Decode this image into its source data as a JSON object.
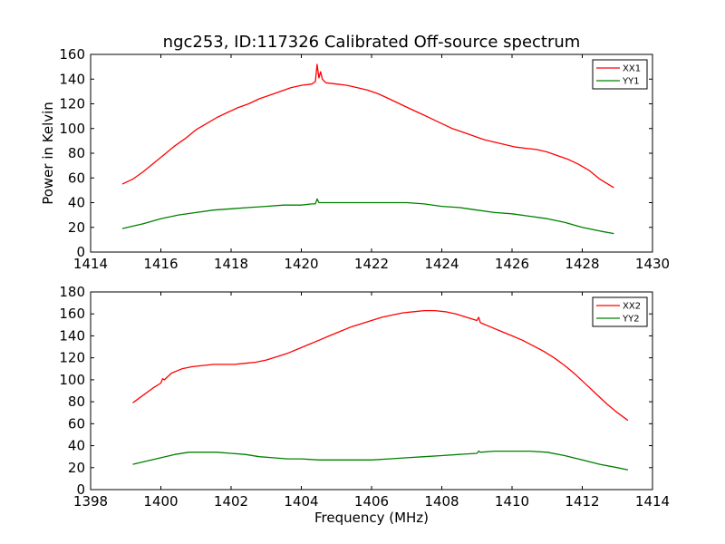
{
  "figure": {
    "title": "ngc253, ID:117326 Calibrated Off-source spectrum"
  },
  "chart_data": [
    {
      "type": "line",
      "title": "ngc253, ID:117326 Calibrated Off-source spectrum",
      "xlabel": "",
      "ylabel": "Power in Kelvin",
      "xlim": [
        1414,
        1430
      ],
      "ylim": [
        0,
        160
      ],
      "xticks": [
        1414,
        1416,
        1418,
        1420,
        1422,
        1424,
        1426,
        1428,
        1430
      ],
      "yticks": [
        0,
        20,
        40,
        60,
        80,
        100,
        120,
        140,
        160
      ],
      "grid": false,
      "legend": "top-right",
      "series": [
        {
          "name": "XX1",
          "color": "#ff0000",
          "x": [
            1414.9,
            1415.2,
            1415.5,
            1415.8,
            1416.1,
            1416.4,
            1416.7,
            1417.0,
            1417.3,
            1417.6,
            1417.9,
            1418.2,
            1418.5,
            1418.8,
            1419.1,
            1419.4,
            1419.7,
            1420.0,
            1420.3,
            1420.4,
            1420.45,
            1420.5,
            1420.55,
            1420.6,
            1420.7,
            1421.0,
            1421.3,
            1421.6,
            1421.9,
            1422.2,
            1422.5,
            1422.8,
            1423.1,
            1423.4,
            1423.7,
            1424.0,
            1424.3,
            1424.6,
            1424.9,
            1425.2,
            1425.5,
            1425.8,
            1426.1,
            1426.4,
            1426.7,
            1427.0,
            1427.3,
            1427.6,
            1427.9,
            1428.2,
            1428.5,
            1428.9
          ],
          "y": [
            55,
            59,
            65,
            72,
            79,
            86,
            92,
            99,
            104,
            109,
            113,
            117,
            120,
            124,
            127,
            130,
            133,
            135,
            136,
            138,
            152,
            141,
            146,
            140,
            137,
            136,
            135,
            133,
            131,
            128,
            124,
            120,
            116,
            112,
            108,
            104,
            100,
            97,
            94,
            91,
            89,
            87,
            85,
            84,
            83,
            81,
            78,
            75,
            71,
            66,
            59,
            52
          ]
        },
        {
          "name": "YY1",
          "color": "#008000",
          "x": [
            1414.9,
            1415.5,
            1416.0,
            1416.5,
            1417.0,
            1417.5,
            1418.0,
            1418.5,
            1419.0,
            1419.5,
            1420.0,
            1420.3,
            1420.4,
            1420.45,
            1420.5,
            1420.6,
            1421.0,
            1421.5,
            1422.0,
            1422.5,
            1423.0,
            1423.5,
            1424.0,
            1424.5,
            1425.0,
            1425.5,
            1426.0,
            1426.5,
            1427.0,
            1427.5,
            1428.0,
            1428.5,
            1428.9
          ],
          "y": [
            19,
            23,
            27,
            30,
            32,
            34,
            35,
            36,
            37,
            38,
            38,
            39,
            39,
            43,
            40,
            40,
            40,
            40,
            40,
            40,
            40,
            39,
            37,
            36,
            34,
            32,
            31,
            29,
            27,
            24,
            20,
            17,
            15
          ]
        }
      ]
    },
    {
      "type": "line",
      "title": "",
      "xlabel": "Frequency (MHz)",
      "ylabel": "",
      "xlim": [
        1398,
        1414
      ],
      "ylim": [
        0,
        180
      ],
      "xticks": [
        1398,
        1400,
        1402,
        1404,
        1406,
        1408,
        1410,
        1412,
        1414
      ],
      "yticks": [
        0,
        20,
        40,
        60,
        80,
        100,
        120,
        140,
        160,
        180
      ],
      "grid": false,
      "legend": "top-right",
      "series": [
        {
          "name": "XX2",
          "color": "#ff0000",
          "x": [
            1399.2,
            1399.5,
            1399.8,
            1400.0,
            1400.05,
            1400.1,
            1400.3,
            1400.6,
            1400.9,
            1401.2,
            1401.5,
            1401.8,
            1402.1,
            1402.4,
            1402.7,
            1403.0,
            1403.3,
            1403.6,
            1403.9,
            1404.2,
            1404.5,
            1404.8,
            1405.1,
            1405.4,
            1405.7,
            1406.0,
            1406.3,
            1406.6,
            1406.9,
            1407.2,
            1407.5,
            1407.8,
            1408.1,
            1408.4,
            1408.7,
            1409.0,
            1409.05,
            1409.1,
            1409.4,
            1409.7,
            1410.0,
            1410.3,
            1410.6,
            1410.9,
            1411.2,
            1411.5,
            1411.8,
            1412.1,
            1412.4,
            1412.7,
            1413.0,
            1413.3
          ],
          "y": [
            79,
            86,
            93,
            97,
            101,
            100,
            106,
            110,
            112,
            113,
            114,
            114,
            114,
            115,
            116,
            118,
            121,
            124,
            128,
            132,
            136,
            140,
            144,
            148,
            151,
            154,
            157,
            159,
            161,
            162,
            163,
            163,
            162,
            160,
            157,
            154,
            157,
            152,
            148,
            144,
            140,
            136,
            131,
            126,
            120,
            113,
            105,
            96,
            87,
            78,
            70,
            63
          ]
        },
        {
          "name": "YY2",
          "color": "#008000",
          "x": [
            1399.2,
            1399.6,
            1400.0,
            1400.4,
            1400.8,
            1401.2,
            1401.6,
            1402.0,
            1402.4,
            1402.8,
            1403.2,
            1403.6,
            1404.0,
            1404.5,
            1405.0,
            1405.5,
            1406.0,
            1406.5,
            1407.0,
            1407.5,
            1408.0,
            1408.5,
            1409.0,
            1409.05,
            1409.1,
            1409.5,
            1410.0,
            1410.5,
            1411.0,
            1411.5,
            1412.0,
            1412.5,
            1413.0,
            1413.3
          ],
          "y": [
            23,
            26,
            29,
            32,
            34,
            34,
            34,
            33,
            32,
            30,
            29,
            28,
            28,
            27,
            27,
            27,
            27,
            28,
            29,
            30,
            31,
            32,
            33,
            35,
            34,
            35,
            35,
            35,
            34,
            31,
            27,
            23,
            20,
            18
          ]
        }
      ]
    }
  ]
}
